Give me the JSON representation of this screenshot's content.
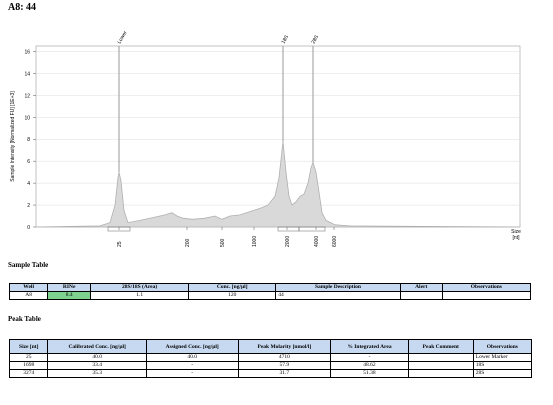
{
  "header": {
    "title": "A8: 44"
  },
  "chart_data": {
    "type": "line",
    "ylabel": "Sample Intensity [Normalized FU] [1E+3]",
    "xlabel": "Size [nt]",
    "yticks": [
      0,
      2,
      4,
      6,
      8,
      10,
      12,
      14,
      16
    ],
    "x_tick_labels": [
      "25",
      "200",
      "500",
      "1000",
      "2000",
      "4000",
      "6000"
    ],
    "ylim": [
      0,
      16.5
    ],
    "peaks": [
      {
        "label": "Lower",
        "size_nt": 25,
        "height": 5.0
      },
      {
        "label": "18S",
        "size_nt": 1698,
        "height": 7.8
      },
      {
        "label": "28S",
        "size_nt": 3274,
        "height": 5.9
      }
    ],
    "grid": true,
    "color": "#b0b0b0"
  },
  "sample_table": {
    "title": "Sample Table",
    "headers": [
      "Well",
      "RINe",
      "28S/18S (Area)",
      "Conc. [ng/µl]",
      "Sample Description",
      "Alert",
      "Observations"
    ],
    "rows": [
      [
        "A8",
        "8.4",
        "1.1",
        "120",
        "44",
        "",
        ""
      ]
    ]
  },
  "peak_table": {
    "title": "Peak Table",
    "headers": [
      "Size [nt]",
      "Calibrated Conc. [ng/µl]",
      "Assigned Conc. [ng/µl]",
      "Peak Molarity [nmol/l]",
      "% Integrated Area",
      "Peak Comment",
      "Observations"
    ],
    "rows": [
      [
        "25",
        "40.0",
        "40.0",
        "4710",
        "-",
        "",
        "Lower Marker"
      ],
      [
        "1698",
        "33.4",
        "-",
        "57.9",
        "48.62",
        "",
        "18S"
      ],
      [
        "3274",
        "35.3",
        "-",
        "31.7",
        "51.38",
        "",
        "28S"
      ]
    ]
  }
}
